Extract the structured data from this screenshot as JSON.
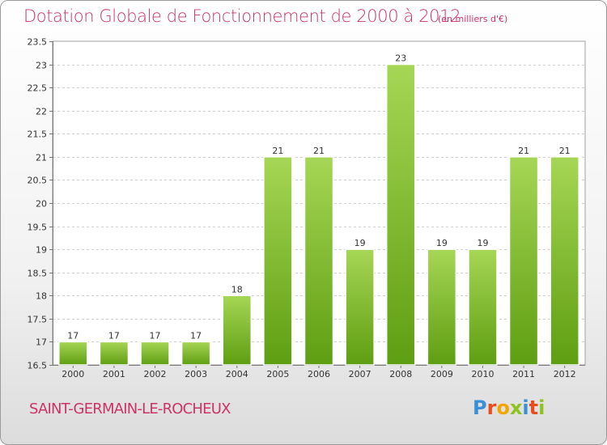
{
  "header": {
    "title": "Dotation Globale de Fonctionnement de 2000 à 2012",
    "unit": "(en milliers d'€)"
  },
  "footer": {
    "commune": "SAINT-GERMAIN-LE-ROCHEUX",
    "logo_letters": [
      "P",
      "r",
      "o",
      "x",
      "i",
      "t",
      "i"
    ],
    "logo_colors": [
      "#3a8fd6",
      "#e84e1b",
      "#f5a500",
      "#8dc21f",
      "#3a8fd6",
      "#e84e1b",
      "#8dc21f"
    ]
  },
  "chart_data": {
    "type": "bar",
    "title": "Dotation Globale de Fonctionnement de 2000 à 2012",
    "subtitle": "(en milliers d'€)",
    "xlabel": "",
    "ylabel": "",
    "categories": [
      "2000",
      "2001",
      "2002",
      "2003",
      "2004",
      "2005",
      "2006",
      "2007",
      "2008",
      "2009",
      "2010",
      "2011",
      "2012"
    ],
    "values": [
      17,
      17,
      17,
      17,
      18,
      21,
      21,
      19,
      23,
      19,
      19,
      21,
      21
    ],
    "data_labels": [
      "17",
      "17",
      "17",
      "17",
      "18",
      "21",
      "21",
      "19",
      "23",
      "19",
      "19",
      "21",
      "21"
    ],
    "ylim": [
      16.5,
      23.5
    ],
    "yticks": [
      "16.5",
      "17",
      "17.5",
      "18",
      "18.5",
      "19",
      "19.5",
      "20",
      "20.5",
      "21",
      "21.5",
      "22",
      "22.5",
      "23",
      "23.5"
    ],
    "grid": true,
    "bar_color_top": "#a6d655",
    "bar_color_bottom": "#5e9e12"
  }
}
